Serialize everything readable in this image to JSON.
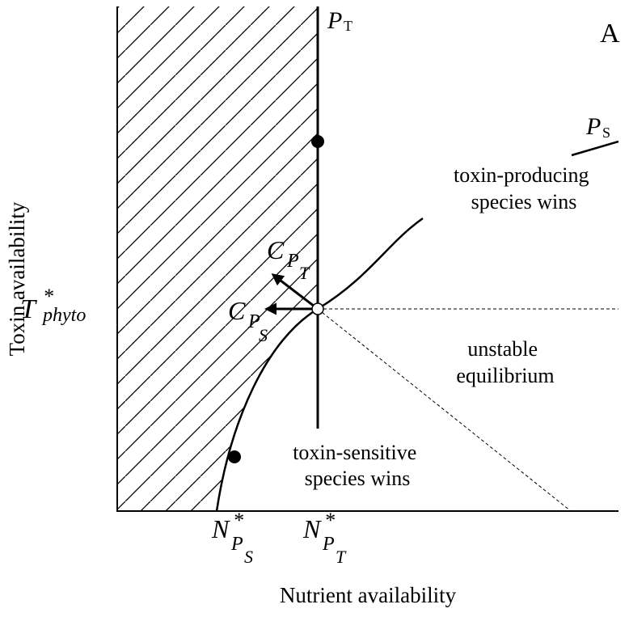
{
  "panel_label": "A",
  "curve_labels": {
    "p_t": {
      "base": "P",
      "sub": "T"
    },
    "p_s": {
      "base": "P",
      "sub": "S"
    }
  },
  "regions": {
    "toxin_producing": [
      "toxin-producing",
      "species wins"
    ],
    "unstable": [
      "unstable",
      "equilibrium"
    ],
    "toxin_sensitive": [
      "toxin-sensitive",
      "species wins"
    ]
  },
  "vectors": {
    "c_pt": {
      "base": "C",
      "sub": "P",
      "subsub": "T"
    },
    "c_ps": {
      "base": "C",
      "sub": "P",
      "subsub": "S"
    }
  },
  "axes": {
    "y_label": "Toxin availability",
    "x_label": "Nutrient availability",
    "y_mark": {
      "base": "T",
      "sup": "*",
      "sub": "phyto"
    },
    "x_marks": [
      {
        "base": "N",
        "sup": "*",
        "sub": "P",
        "subsub": "S"
      },
      {
        "base": "N",
        "sup": "*",
        "sub": "P",
        "subsub": "T"
      }
    ]
  }
}
